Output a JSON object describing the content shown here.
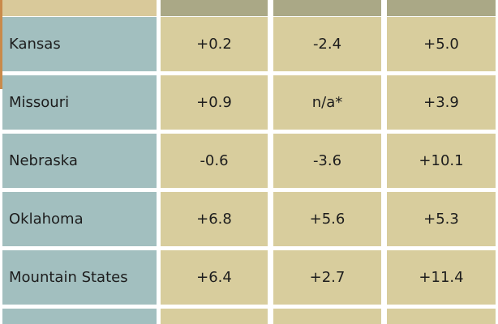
{
  "table": {
    "rows": [
      [
        "Kansas",
        "+0.2",
        "-2.4",
        "+5.0"
      ],
      [
        "Missouri",
        "+0.9",
        "n/a*",
        "+3.9"
      ],
      [
        "Nebraska",
        "-0.6",
        "-3.6",
        "+10.1"
      ],
      [
        "Oklahoma",
        "+6.8",
        "+5.6",
        "+5.3"
      ],
      [
        "Mountain States",
        "+6.4",
        "+2.7",
        "+11.4"
      ]
    ]
  }
}
